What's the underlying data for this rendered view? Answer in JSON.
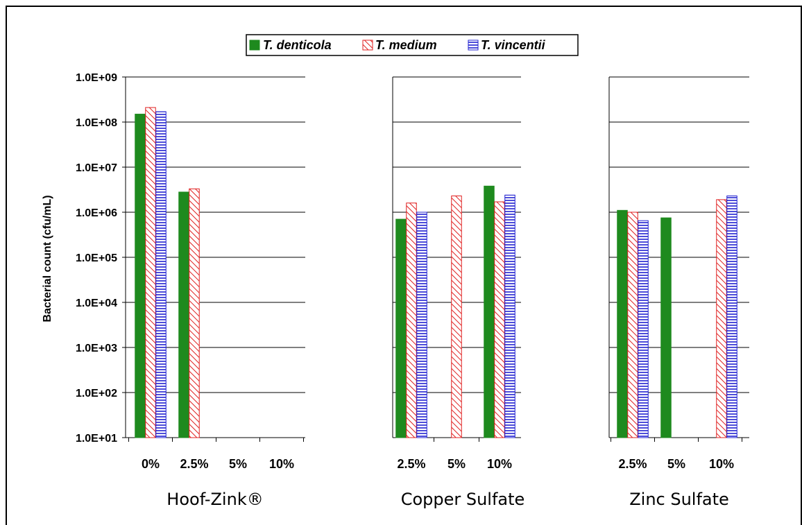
{
  "chart_data": {
    "type": "bar",
    "ylabel": "Bacterial count (cfu/mL)",
    "yscale": "log",
    "ylim": [
      10,
      1000000000
    ],
    "yticks": [
      "1.0E+01",
      "1.0E+02",
      "1.0E+03",
      "1.0E+04",
      "1.0E+05",
      "1.0E+06",
      "1.0E+07",
      "1.0E+08",
      "1.0E+09"
    ],
    "grid": true,
    "legend": {
      "placement": "top",
      "entries": [
        "T. denticola",
        "T. medium",
        "T. vincentii"
      ]
    },
    "series_styles": [
      {
        "name": "T. denticola",
        "color": "#1e8a1e",
        "pattern": "solid"
      },
      {
        "name": "T. medium",
        "color": "#e02020",
        "pattern": "diagonal-hatch"
      },
      {
        "name": "T. vincentii",
        "color": "#2020d0",
        "pattern": "horizontal-lines"
      }
    ],
    "panels": [
      {
        "title": "Hoof-Zink®",
        "categories": [
          "0%",
          "2.5%",
          "5%",
          "10%"
        ],
        "series": [
          {
            "name": "T. denticola",
            "values": [
              150000000,
              2800000,
              null,
              null
            ]
          },
          {
            "name": "T. medium",
            "values": [
              210000000,
              3300000,
              null,
              null
            ]
          },
          {
            "name": "T. vincentii",
            "values": [
              170000000,
              null,
              null,
              null
            ]
          }
        ]
      },
      {
        "title": "Copper Sulfate",
        "categories": [
          "2.5%",
          "5%",
          "10%"
        ],
        "series": [
          {
            "name": "T. denticola",
            "values": [
              700000,
              null,
              3800000
            ]
          },
          {
            "name": "T. medium",
            "values": [
              1600000,
              2300000,
              1700000
            ]
          },
          {
            "name": "T. vincentii",
            "values": [
              1000000,
              null,
              2400000
            ]
          }
        ]
      },
      {
        "title": "Zinc Sulfate",
        "categories": [
          "2.5%",
          "5%",
          "10%"
        ],
        "series": [
          {
            "name": "T. denticola",
            "values": [
              1100000,
              750000,
              null
            ]
          },
          {
            "name": "T. medium",
            "values": [
              1000000,
              null,
              1900000
            ]
          },
          {
            "name": "T. vincentii",
            "values": [
              650000,
              null,
              2300000
            ]
          }
        ]
      }
    ]
  }
}
